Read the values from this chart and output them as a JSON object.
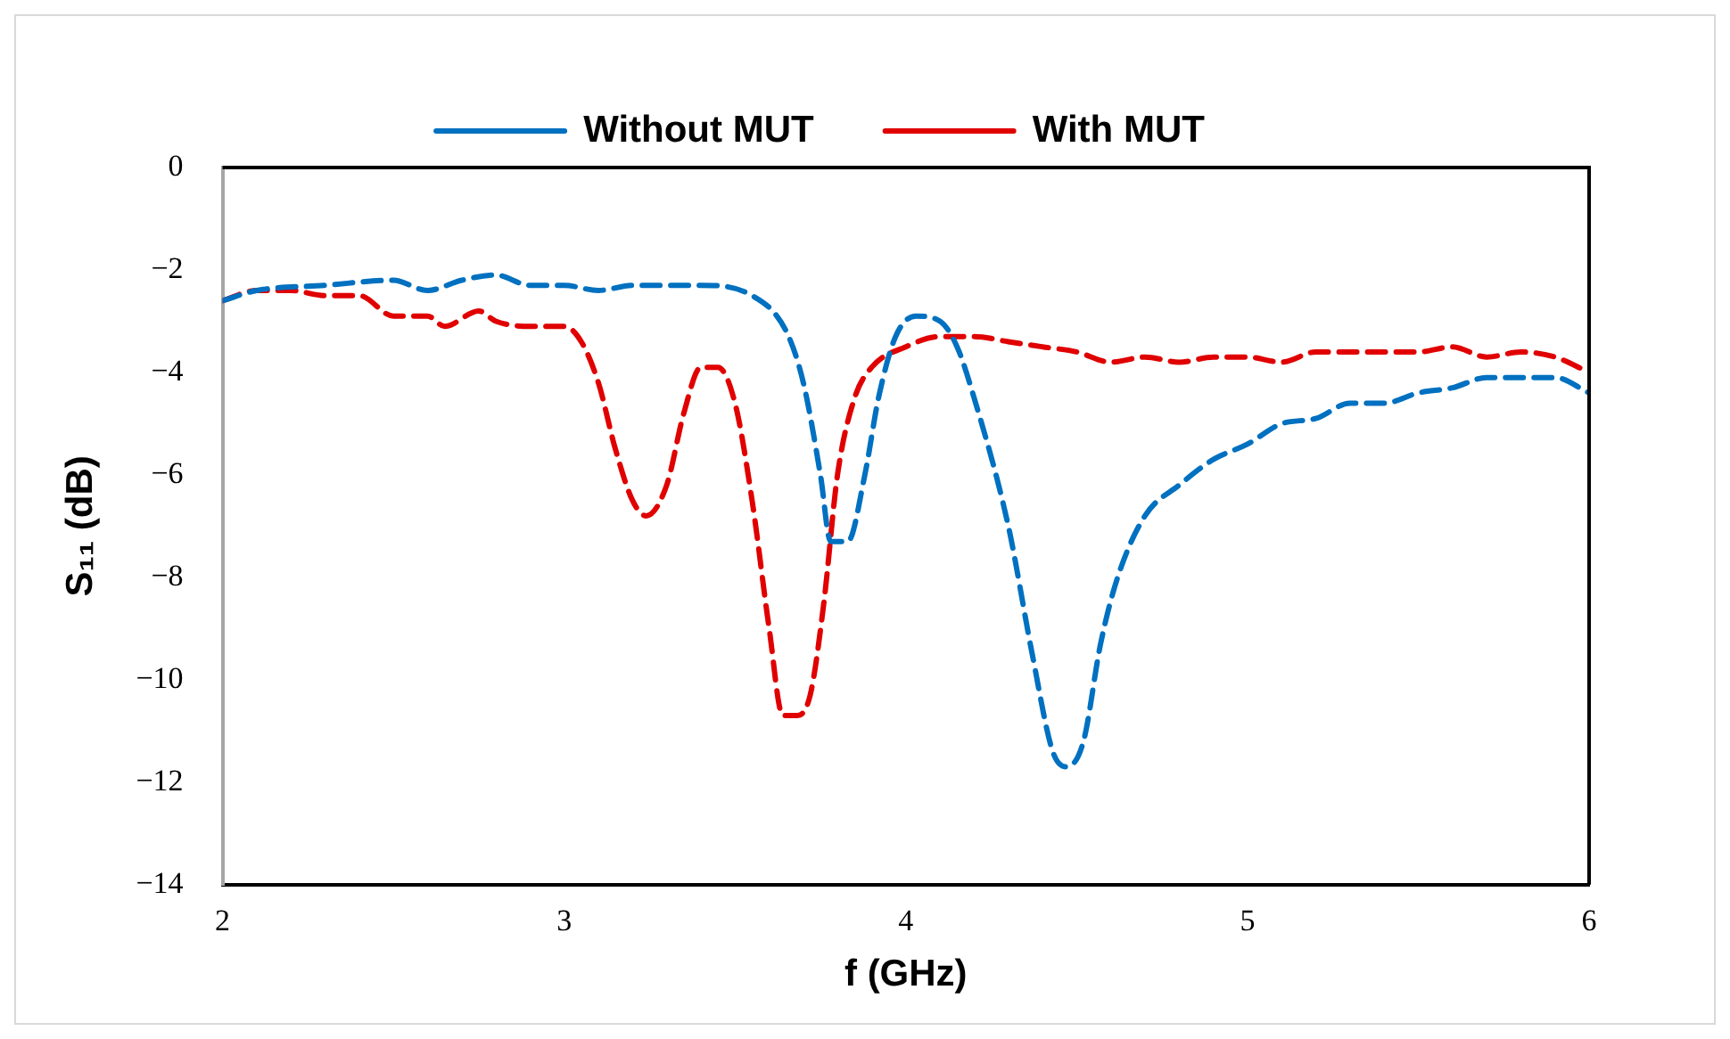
{
  "chart_data": {
    "type": "line",
    "xlabel": "f (GHz)",
    "ylabel": "S₁₁ (dB)",
    "xlim": [
      2,
      6
    ],
    "xticks": [
      2,
      3,
      4,
      5,
      6
    ],
    "ylim": [
      -14,
      0
    ],
    "yticks": [
      {
        "value": -14,
        "label": "−14"
      },
      {
        "value": -12,
        "label": "−12"
      },
      {
        "value": -10,
        "label": "−10"
      },
      {
        "value": -8,
        "label": "−8"
      },
      {
        "value": -6,
        "label": "−6"
      },
      {
        "value": -4,
        "label": "−4"
      },
      {
        "value": -2,
        "label": "−2"
      },
      0
    ],
    "grid": false,
    "legend": "top",
    "marker": "none",
    "line_style": "dashed",
    "series": [
      {
        "name": "Without MUT",
        "color": "#0070c0",
        "x": [
          2.0,
          2.1,
          2.3,
          2.5,
          2.6,
          2.7,
          2.8,
          2.9,
          3.0,
          3.1,
          3.2,
          3.4,
          3.55,
          3.65,
          3.7,
          3.75,
          3.78,
          3.83,
          3.88,
          3.92,
          3.97,
          4.03,
          4.1,
          4.15,
          4.2,
          4.3,
          4.37,
          4.43,
          4.47,
          4.52,
          4.57,
          4.62,
          4.7,
          4.8,
          4.9,
          5.0,
          5.1,
          5.2,
          5.3,
          5.4,
          5.5,
          5.6,
          5.7,
          5.8,
          5.9,
          6.0
        ],
        "values": [
          -2.6,
          -2.4,
          -2.3,
          -2.2,
          -2.4,
          -2.2,
          -2.1,
          -2.3,
          -2.3,
          -2.4,
          -2.3,
          -2.3,
          -2.5,
          -3.2,
          -4.2,
          -6,
          -7.3,
          -7.3,
          -6,
          -4.5,
          -3.3,
          -2.9,
          -3.0,
          -3.5,
          -4.5,
          -7,
          -9.5,
          -11.4,
          -11.7,
          -11.2,
          -9.3,
          -8,
          -6.8,
          -6.2,
          -5.7,
          -5.4,
          -5.0,
          -4.9,
          -4.6,
          -4.6,
          -4.4,
          -4.3,
          -4.1,
          -4.1,
          -4.1,
          -4.4
        ]
      },
      {
        "name": "With MUT",
        "color": "#e00000",
        "x": [
          2.0,
          2.1,
          2.2,
          2.3,
          2.4,
          2.5,
          2.6,
          2.65,
          2.75,
          2.8,
          2.9,
          3.0,
          3.05,
          3.1,
          3.15,
          3.2,
          3.24,
          3.3,
          3.35,
          3.4,
          3.45,
          3.5,
          3.55,
          3.6,
          3.64,
          3.68,
          3.72,
          3.76,
          3.8,
          3.85,
          3.9,
          4.0,
          4.1,
          4.2,
          4.3,
          4.4,
          4.5,
          4.6,
          4.7,
          4.8,
          4.9,
          5.0,
          5.1,
          5.2,
          5.3,
          5.4,
          5.5,
          5.6,
          5.7,
          5.8,
          5.9,
          6.0
        ],
        "values": [
          -2.6,
          -2.4,
          -2.4,
          -2.5,
          -2.5,
          -2.9,
          -2.9,
          -3.1,
          -2.8,
          -3.0,
          -3.1,
          -3.1,
          -3.4,
          -4.2,
          -5.5,
          -6.5,
          -6.8,
          -6.2,
          -4.8,
          -3.9,
          -3.9,
          -4.6,
          -6.5,
          -9,
          -10.7,
          -10.7,
          -10.3,
          -8.5,
          -6,
          -4.5,
          -3.9,
          -3.5,
          -3.3,
          -3.3,
          -3.4,
          -3.5,
          -3.6,
          -3.8,
          -3.7,
          -3.8,
          -3.7,
          -3.7,
          -3.8,
          -3.6,
          -3.6,
          -3.6,
          -3.6,
          -3.5,
          -3.7,
          -3.6,
          -3.7,
          -4.0
        ]
      }
    ]
  }
}
